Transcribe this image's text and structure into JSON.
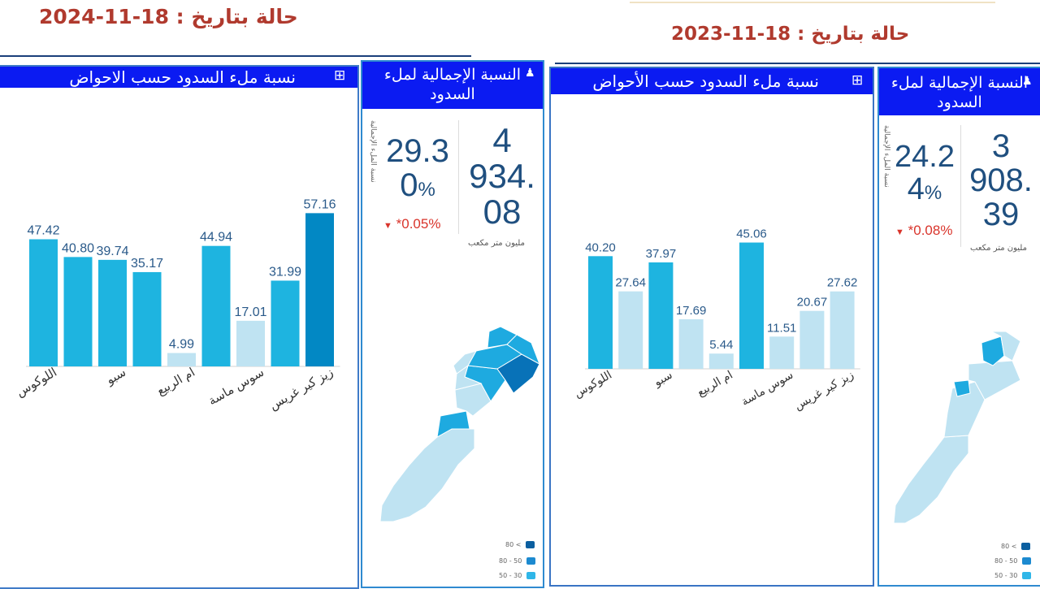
{
  "dates": {
    "left_header": "حالة بتاريخ : 18-11-2024",
    "right_header": "حالة بتاريخ : 18-11-2023"
  },
  "panels": {
    "y2024": {
      "chart_title": "نسبة ملء السدود حسب الاحواض",
      "overall_title": "النسبة الإجمالية لملء السدود",
      "fill_main": "29.3",
      "fill_tail": "0",
      "percent_sign": "%",
      "fill_note": "نسبة الملء الإجمالية",
      "change": "*0.05%",
      "volume_line1": "4",
      "volume_line2": "934.",
      "volume_line3": "08",
      "volume_unit": "مليون متر مكعب"
    },
    "y2023": {
      "chart_title": "نسبة ملء السدود حسب الأحواض",
      "overall_title": "النسبة الإجمالية لملء السدود",
      "fill_main": "24.2",
      "fill_tail": "4",
      "percent_sign": "%",
      "fill_note": "نسبة الملء الإجمالية",
      "change": "*0.08%",
      "volume_line1": "3",
      "volume_line2": "908.",
      "volume_line3": "39",
      "volume_unit": "مليون متر مكعب"
    }
  },
  "legend": [
    "80 <",
    "80 - 50",
    "50 - 30"
  ],
  "colors": {
    "header_blue": "#0b1bf2",
    "date_red": "#b03a2e",
    "bar_light": "#bfe3f2",
    "bar_mid": "#1eb4e0",
    "bar_dark": "#0288c4",
    "change_red": "#d9342b",
    "map_pale": "#bfe3f2",
    "map_mid": "#1eaae0",
    "map_dark": "#0872b8"
  },
  "chart_data": [
    {
      "type": "bar",
      "title": "نسبة ملء السدود حسب الاحواض",
      "categories": [
        "اللوكوس",
        "",
        "سبو",
        "",
        "ام الربيع",
        "",
        "سوس ماسة",
        "",
        "زيز كير غريس"
      ],
      "values": [
        47.42,
        40.8,
        39.74,
        35.17,
        4.99,
        44.94,
        17.01,
        31.99,
        57.16
      ],
      "color_class": [
        "mid",
        "mid",
        "mid",
        "mid",
        "light",
        "mid",
        "light",
        "mid",
        "dark"
      ],
      "ylim": [
        0,
        60
      ]
    },
    {
      "type": "bar",
      "title": "نسبة ملء السدود حسب الأحواض",
      "categories": [
        "اللوكوس",
        "",
        "سبو",
        "",
        "ام الربيع",
        "",
        "سوس ماسة",
        "",
        "زيز كير غريس"
      ],
      "values": [
        40.2,
        27.64,
        37.97,
        17.69,
        5.44,
        45.06,
        11.51,
        20.67,
        27.62
      ],
      "color_class": [
        "mid",
        "light",
        "mid",
        "light",
        "light",
        "mid",
        "light",
        "light",
        "light"
      ],
      "ylim": [
        0,
        60
      ]
    }
  ]
}
